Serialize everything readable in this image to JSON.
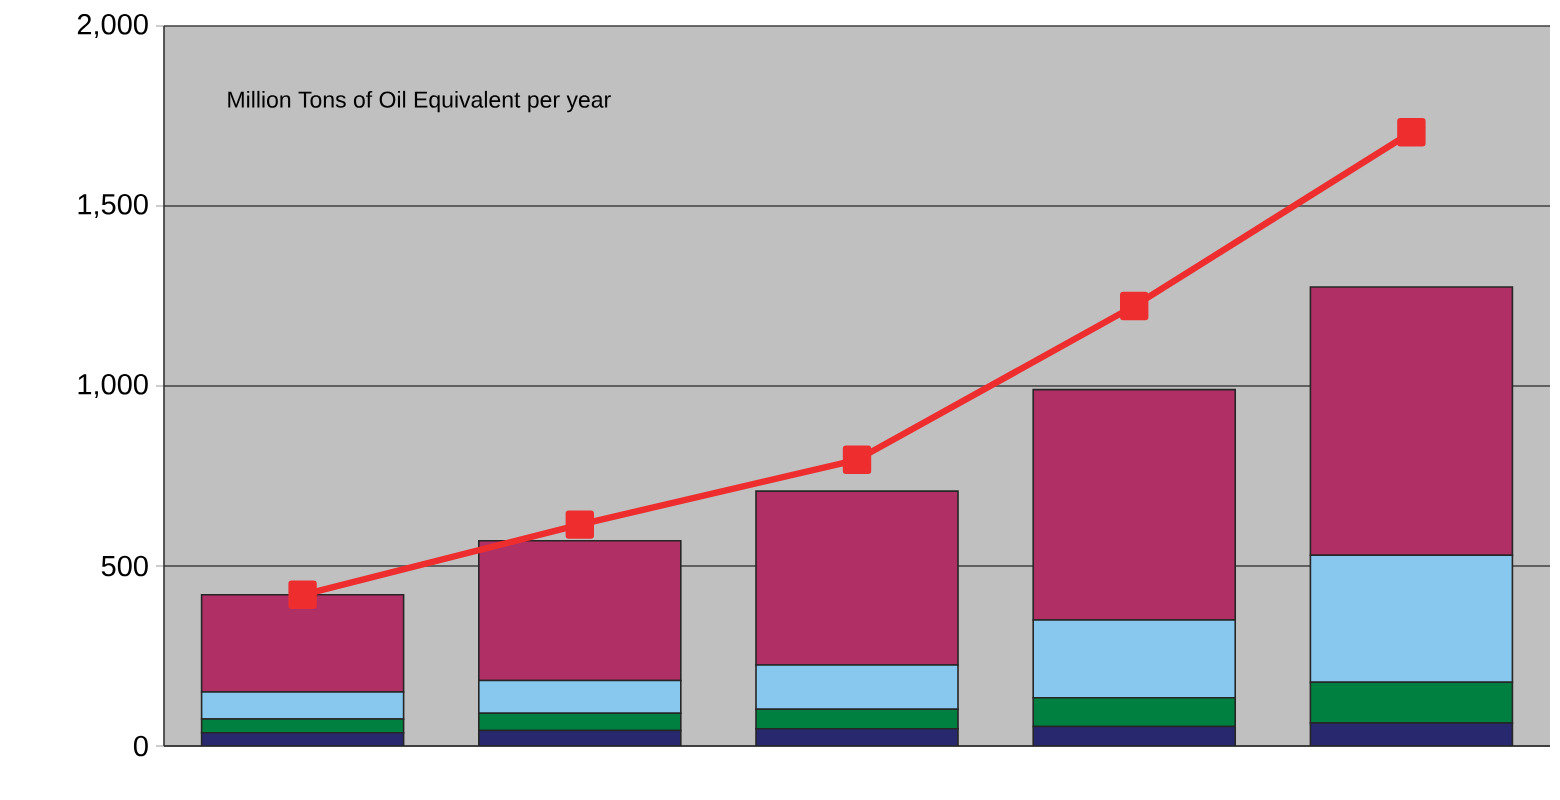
{
  "chart_data": {
    "type": "bar",
    "stacked": true,
    "categories": [
      null,
      null,
      null,
      null,
      null
    ],
    "series": [
      {
        "color": "#28286e",
        "values": [
          37,
          43,
          48,
          54,
          64
        ]
      },
      {
        "color": "#008040",
        "values": [
          38,
          48,
          54,
          80,
          113
        ]
      },
      {
        "color": "#88c8ee",
        "values": [
          75,
          91,
          123,
          216,
          353
        ]
      },
      {
        "color": "#b03066",
        "values": [
          270,
          388,
          483,
          640,
          745
        ]
      },
      {
        "type": "line",
        "color": "#ee2e2e",
        "values": [
          420,
          615,
          795,
          1222,
          1705
        ],
        "marker": "square",
        "line_style": "solid"
      }
    ],
    "ylim": [
      0,
      2000
    ],
    "yticks": [
      {
        "value": 0,
        "label": "0"
      },
      {
        "value": 500,
        "label": "500"
      },
      {
        "value": 1000,
        "label": "1,000"
      },
      {
        "value": 1500,
        "label": "1,500"
      },
      {
        "value": 2000,
        "label": "2,000"
      }
    ],
    "grid": "y",
    "annotations": [
      "Million Tons of Oil Equivalent per year"
    ]
  }
}
